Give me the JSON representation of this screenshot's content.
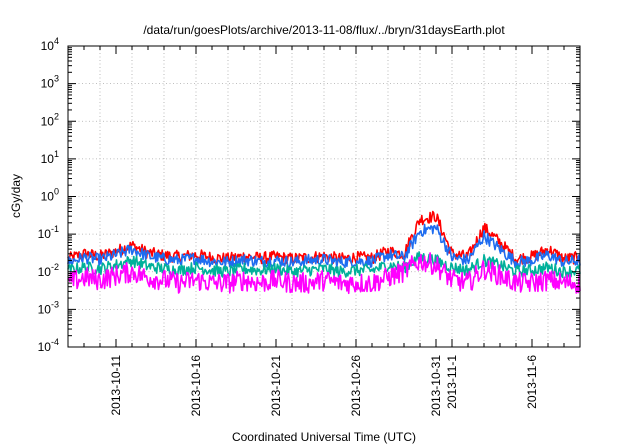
{
  "chart_data": {
    "type": "line",
    "title": "/data/run/goesPlots/archive/2013-11-08/flux/../bryn/31daysEarth.plot",
    "xlabel": "Coordinated Universal Time (UTC)",
    "ylabel": "cGy/day",
    "yscale": "log",
    "ylim": [
      0.0001,
      10000
    ],
    "xlim": [
      "2013-10-08",
      "2013-11-09"
    ],
    "grid": true,
    "y_ticks": [
      {
        "value": 0.0001,
        "base": "10",
        "exp": "-4"
      },
      {
        "value": 0.001,
        "base": "10",
        "exp": "-3"
      },
      {
        "value": 0.01,
        "base": "10",
        "exp": "-2"
      },
      {
        "value": 0.1,
        "base": "10",
        "exp": "-1"
      },
      {
        "value": 1,
        "base": "10",
        "exp": "0"
      },
      {
        "value": 10,
        "base": "10",
        "exp": "1"
      },
      {
        "value": 100,
        "base": "10",
        "exp": "2"
      },
      {
        "value": 1000,
        "base": "10",
        "exp": "3"
      },
      {
        "value": 10000,
        "base": "10",
        "exp": "4"
      }
    ],
    "x_ticks": [
      {
        "value": "2013-10-11",
        "label": "2013-10-11"
      },
      {
        "value": "2013-10-16",
        "label": "2013-10-16"
      },
      {
        "value": "2013-10-21",
        "label": "2013-10-21"
      },
      {
        "value": "2013-10-26",
        "label": "2013-10-26"
      },
      {
        "value": "2013-10-31",
        "label": "2013-10-31"
      },
      {
        "value": "2013-11-01",
        "label": "2013-11-1"
      },
      {
        "value": "2013-11-06",
        "label": "2013-11-6"
      }
    ],
    "series": [
      {
        "color": "#ff0000",
        "values": [
          [
            "2013-10-08",
            0.022
          ],
          [
            "2013-10-09",
            0.03
          ],
          [
            "2013-10-10",
            0.026
          ],
          [
            "2013-10-11",
            0.035
          ],
          [
            "2013-10-12",
            0.05
          ],
          [
            "2013-10-13",
            0.032
          ],
          [
            "2013-10-14",
            0.027
          ],
          [
            "2013-10-15",
            0.025
          ],
          [
            "2013-10-16",
            0.028
          ],
          [
            "2013-10-17",
            0.024
          ],
          [
            "2013-10-18",
            0.022
          ],
          [
            "2013-10-19",
            0.026
          ],
          [
            "2013-10-20",
            0.023
          ],
          [
            "2013-10-21",
            0.025
          ],
          [
            "2013-10-22",
            0.022
          ],
          [
            "2013-10-23",
            0.024
          ],
          [
            "2013-10-24",
            0.026
          ],
          [
            "2013-10-25",
            0.022
          ],
          [
            "2013-10-26",
            0.024
          ],
          [
            "2013-10-27",
            0.023
          ],
          [
            "2013-10-28",
            0.035
          ],
          [
            "2013-10-29",
            0.03
          ],
          [
            "2013-10-30",
            0.25
          ],
          [
            "2013-10-31",
            0.3
          ],
          [
            "2013-11-01",
            0.03
          ],
          [
            "2013-11-02",
            0.025
          ],
          [
            "2013-11-03",
            0.15
          ],
          [
            "2013-11-04",
            0.06
          ],
          [
            "2013-11-05",
            0.022
          ],
          [
            "2013-11-06",
            0.025
          ],
          [
            "2013-11-07",
            0.04
          ],
          [
            "2013-11-08",
            0.022
          ],
          [
            "2013-11-09",
            0.024
          ]
        ]
      },
      {
        "color": "#1e6cf0",
        "values": [
          [
            "2013-10-08",
            0.018
          ],
          [
            "2013-10-09",
            0.024
          ],
          [
            "2013-10-10",
            0.021
          ],
          [
            "2013-10-11",
            0.028
          ],
          [
            "2013-10-12",
            0.04
          ],
          [
            "2013-10-13",
            0.026
          ],
          [
            "2013-10-14",
            0.022
          ],
          [
            "2013-10-15",
            0.02
          ],
          [
            "2013-10-16",
            0.023
          ],
          [
            "2013-10-17",
            0.019
          ],
          [
            "2013-10-18",
            0.018
          ],
          [
            "2013-10-19",
            0.021
          ],
          [
            "2013-10-20",
            0.019
          ],
          [
            "2013-10-21",
            0.02
          ],
          [
            "2013-10-22",
            0.018
          ],
          [
            "2013-10-23",
            0.02
          ],
          [
            "2013-10-24",
            0.021
          ],
          [
            "2013-10-25",
            0.018
          ],
          [
            "2013-10-26",
            0.019
          ],
          [
            "2013-10-27",
            0.019
          ],
          [
            "2013-10-28",
            0.028
          ],
          [
            "2013-10-29",
            0.024
          ],
          [
            "2013-10-30",
            0.12
          ],
          [
            "2013-10-31",
            0.15
          ],
          [
            "2013-11-01",
            0.024
          ],
          [
            "2013-11-02",
            0.02
          ],
          [
            "2013-11-03",
            0.09
          ],
          [
            "2013-11-04",
            0.04
          ],
          [
            "2013-11-05",
            0.018
          ],
          [
            "2013-11-06",
            0.02
          ],
          [
            "2013-11-07",
            0.028
          ],
          [
            "2013-11-08",
            0.018
          ],
          [
            "2013-11-09",
            0.02
          ]
        ]
      },
      {
        "color": "#00b09a",
        "values": [
          [
            "2013-10-08",
            0.011
          ],
          [
            "2013-10-09",
            0.013
          ],
          [
            "2013-10-10",
            0.012
          ],
          [
            "2013-10-11",
            0.015
          ],
          [
            "2013-10-12",
            0.02
          ],
          [
            "2013-10-13",
            0.014
          ],
          [
            "2013-10-14",
            0.012
          ],
          [
            "2013-10-15",
            0.011
          ],
          [
            "2013-10-16",
            0.013
          ],
          [
            "2013-10-17",
            0.011
          ],
          [
            "2013-10-18",
            0.01
          ],
          [
            "2013-10-19",
            0.012
          ],
          [
            "2013-10-20",
            0.011
          ],
          [
            "2013-10-21",
            0.012
          ],
          [
            "2013-10-22",
            0.01
          ],
          [
            "2013-10-23",
            0.011
          ],
          [
            "2013-10-24",
            0.012
          ],
          [
            "2013-10-25",
            0.01
          ],
          [
            "2013-10-26",
            0.011
          ],
          [
            "2013-10-27",
            0.011
          ],
          [
            "2013-10-28",
            0.015
          ],
          [
            "2013-10-29",
            0.013
          ],
          [
            "2013-10-30",
            0.025
          ],
          [
            "2013-10-31",
            0.02
          ],
          [
            "2013-11-01",
            0.013
          ],
          [
            "2013-11-02",
            0.011
          ],
          [
            "2013-11-03",
            0.02
          ],
          [
            "2013-11-04",
            0.015
          ],
          [
            "2013-11-05",
            0.01
          ],
          [
            "2013-11-06",
            0.011
          ],
          [
            "2013-11-07",
            0.013
          ],
          [
            "2013-11-08",
            0.01
          ],
          [
            "2013-11-09",
            0.011
          ]
        ]
      },
      {
        "color": "#ff00ff",
        "values": [
          [
            "2013-10-08",
            0.005
          ],
          [
            "2013-10-09",
            0.007
          ],
          [
            "2013-10-10",
            0.006
          ],
          [
            "2013-10-11",
            0.008
          ],
          [
            "2013-10-12",
            0.01
          ],
          [
            "2013-10-13",
            0.007
          ],
          [
            "2013-10-14",
            0.006
          ],
          [
            "2013-10-15",
            0.005
          ],
          [
            "2013-10-16",
            0.006
          ],
          [
            "2013-10-17",
            0.005
          ],
          [
            "2013-10-18",
            0.005
          ],
          [
            "2013-10-19",
            0.006
          ],
          [
            "2013-10-20",
            0.005
          ],
          [
            "2013-10-21",
            0.006
          ],
          [
            "2013-10-22",
            0.005
          ],
          [
            "2013-10-23",
            0.005
          ],
          [
            "2013-10-24",
            0.006
          ],
          [
            "2013-10-25",
            0.005
          ],
          [
            "2013-10-26",
            0.005
          ],
          [
            "2013-10-27",
            0.005
          ],
          [
            "2013-10-28",
            0.007
          ],
          [
            "2013-10-29",
            0.01
          ],
          [
            "2013-10-30",
            0.02
          ],
          [
            "2013-10-31",
            0.015
          ],
          [
            "2013-11-01",
            0.006
          ],
          [
            "2013-11-02",
            0.005
          ],
          [
            "2013-11-03",
            0.012
          ],
          [
            "2013-11-04",
            0.008
          ],
          [
            "2013-11-05",
            0.005
          ],
          [
            "2013-11-06",
            0.005
          ],
          [
            "2013-11-07",
            0.006
          ],
          [
            "2013-11-08",
            0.005
          ],
          [
            "2013-11-09",
            0.005
          ]
        ]
      }
    ]
  }
}
